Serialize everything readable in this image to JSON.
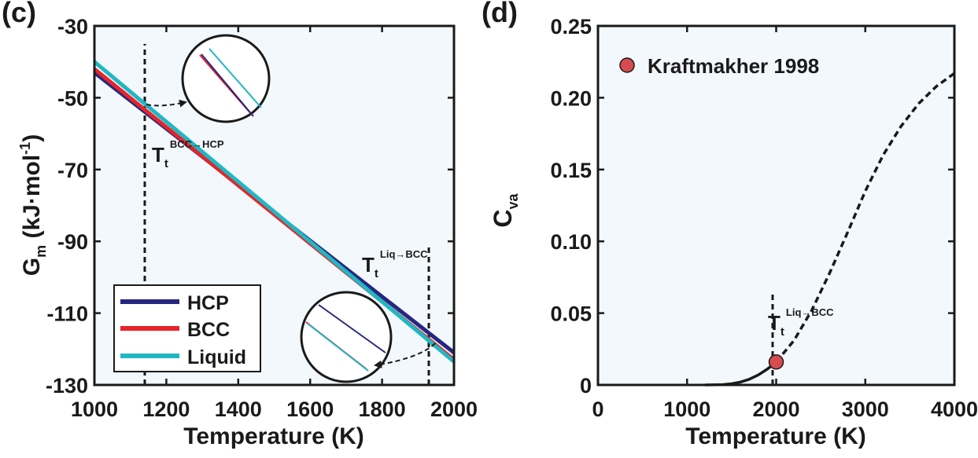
{
  "panels": [
    {
      "label": "(c)",
      "chart_data": {
        "type": "line",
        "title": "",
        "xlabel": "Temperature (K)",
        "ylabel_main": "G",
        "ylabel_sub": "m",
        "ylabel_rest": " (kJ·mol",
        "ylabel_sup": "-1",
        "ylabel_close": ")",
        "xlim": [
          1000,
          2000
        ],
        "ylim": [
          -130,
          -30
        ],
        "xticks": [
          1000,
          1200,
          1400,
          1600,
          1800,
          2000
        ],
        "yticks": [
          -30,
          -50,
          -70,
          -90,
          -110,
          -130
        ],
        "series": [
          {
            "name": "HCP",
            "color": "#27277f",
            "x": [
              1000,
              2000
            ],
            "y": [
              -43.0,
              -121.0
            ]
          },
          {
            "name": "BCC",
            "color": "#e5252a",
            "x": [
              1000,
              2000
            ],
            "y": [
              -42.0,
              -123.0
            ]
          },
          {
            "name": "Liquid",
            "color": "#20b7c2",
            "x": [
              1000,
              2000
            ],
            "y": [
              -40.0,
              -123.5
            ]
          }
        ],
        "legend_position": "bottom-left",
        "vlines": [
          {
            "x": 1140,
            "y_from": -130,
            "y_to": -35
          },
          {
            "x": 1930,
            "y_from": -130,
            "y_to": -91
          }
        ],
        "annotations": [
          {
            "main": "T",
            "sub": "t",
            "sup": "BCC→HCP",
            "at_x": 1140,
            "at_y": -65
          },
          {
            "main": "T",
            "sub": "t",
            "sup": "Liq→BCC",
            "at_x": 1750,
            "at_y": -93
          }
        ]
      }
    },
    {
      "label": "(d)",
      "chart_data": {
        "type": "line",
        "title": "",
        "xlabel": "Temperature (K)",
        "ylabel_main": "C",
        "ylabel_sub": "va",
        "xlim": [
          0,
          4000
        ],
        "ylim": [
          0,
          0.25
        ],
        "xticks": [
          0,
          1000,
          2000,
          3000,
          4000
        ],
        "ytick_values": [
          0,
          0.05,
          0.1,
          0.15,
          0.2,
          0.25
        ],
        "ytick_labels": [
          "0",
          "0.05",
          "0.10",
          "0.15",
          "0.20",
          "0.25"
        ],
        "series": [
          {
            "name": "solid",
            "style": "solid",
            "x": [
              1200,
              1400,
              1500,
              1600,
              1700,
              1800,
              1900,
              2000
            ],
            "y": [
              0,
              0.0002,
              0.0008,
              0.002,
              0.004,
              0.007,
              0.011,
              0.016
            ]
          },
          {
            "name": "extrapolated",
            "style": "dashed",
            "x": [
              2000,
              2200,
              2400,
              2600,
              2800,
              3000,
              3200,
              3400,
              3600,
              3800,
              4000
            ],
            "y": [
              0.016,
              0.031,
              0.052,
              0.078,
              0.106,
              0.135,
              0.16,
              0.18,
              0.196,
              0.208,
              0.217
            ]
          }
        ],
        "points": [
          {
            "name": "Kraftmakher 1998",
            "x": 2000,
            "y": 0.016,
            "color": "#d64b4f"
          }
        ],
        "legend": {
          "label": "Kraftmakher 1998",
          "color": "#d64b4f",
          "position": "top-left"
        },
        "vlines": [
          {
            "x": 1960,
            "y_from": 0,
            "y_to": 0.065
          }
        ],
        "annotations": [
          {
            "main": "T",
            "sub": "t",
            "sup": "Liq→BCC",
            "at_x": 1990,
            "at_y": 0.047
          }
        ]
      }
    }
  ]
}
